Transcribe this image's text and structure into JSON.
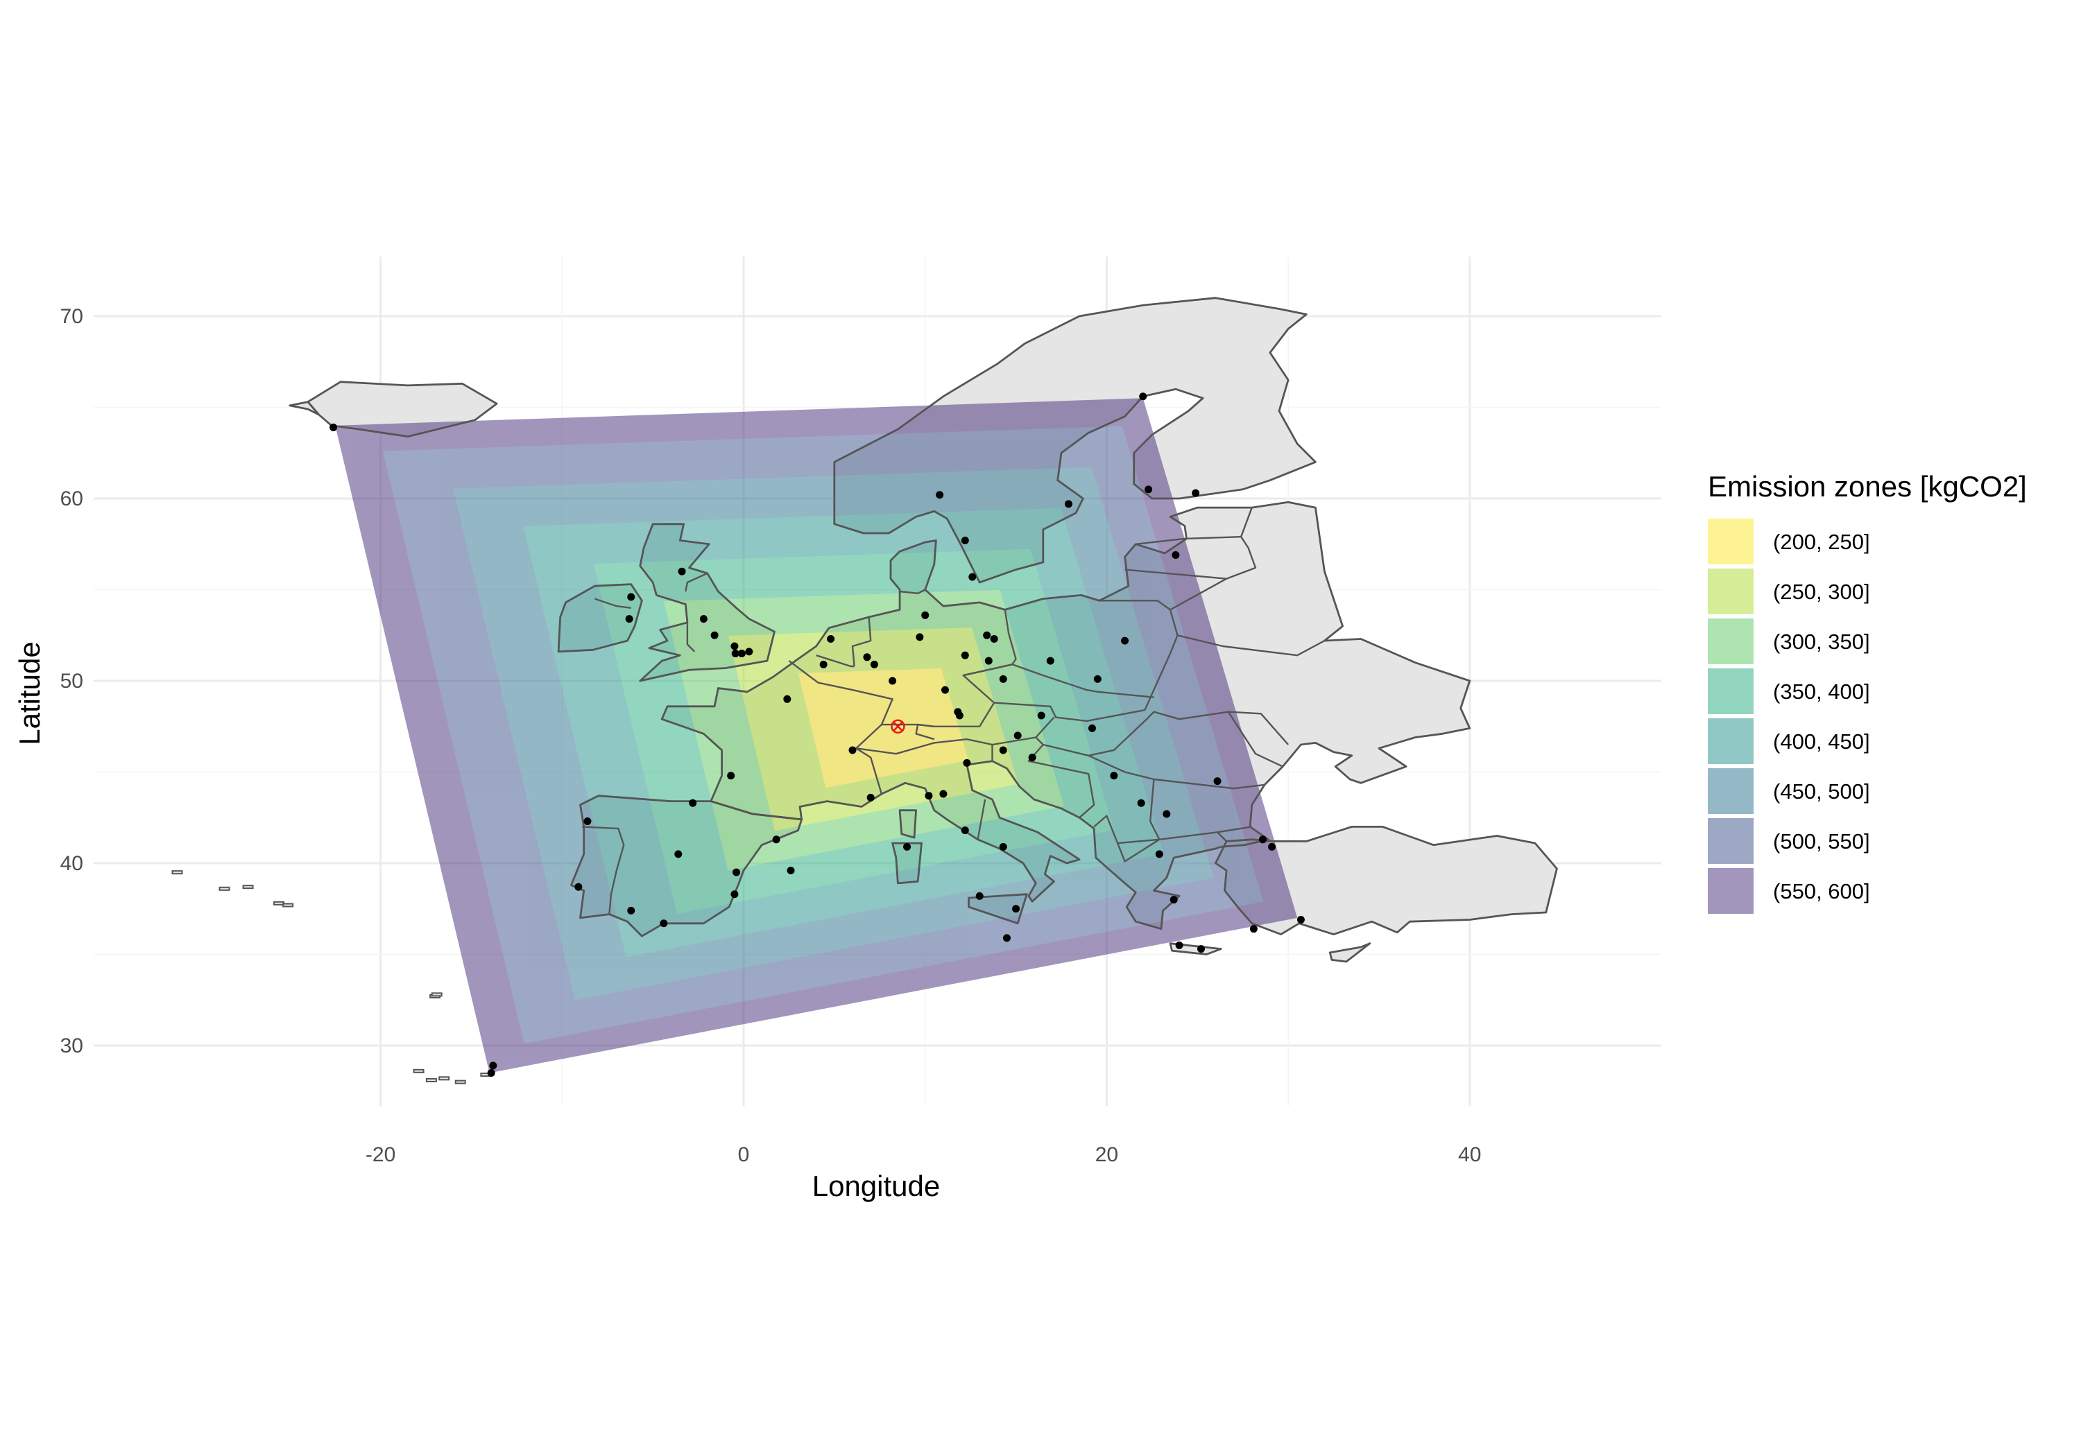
{
  "chart_data": {
    "type": "map",
    "xlabel": "Longitude",
    "ylabel": "Latitude",
    "xlim": [
      -30,
      50
    ],
    "ylim": [
      27,
      72
    ],
    "x_ticks": [
      -20,
      0,
      20,
      40
    ],
    "y_ticks": [
      30,
      40,
      50,
      60,
      70
    ],
    "grid": true,
    "legend": {
      "title": "Emission zones [kgCO2]",
      "placement": "right",
      "entries": [
        {
          "label": "(200, 250]",
          "color": "#fde725"
        },
        {
          "label": "(250, 300]",
          "color": "#addc30"
        },
        {
          "label": "(300, 350]",
          "color": "#5ec962"
        },
        {
          "label": "(350, 400]",
          "color": "#28ae80"
        },
        {
          "label": "(400, 450]",
          "color": "#21918c"
        },
        {
          "label": "(450, 500]",
          "color": "#2c728e"
        },
        {
          "label": "(500, 550]",
          "color": "#3b528b"
        },
        {
          "label": "(550, 600]",
          "color": "#472d7b"
        }
      ]
    },
    "zone_opacity": 0.5,
    "zone_corners": [
      [
        -22.5,
        64
      ],
      [
        22,
        65.5
      ],
      [
        30.5,
        37
      ],
      [
        -14,
        28.5
      ]
    ],
    "zone_center": [
      8.5,
      47.5
    ],
    "origin_marker": {
      "lon": 8.5,
      "lat": 47.5,
      "color": "#e41a1c"
    },
    "cities": [
      [
        -22.6,
        63.9
      ],
      [
        22.0,
        65.6
      ],
      [
        10.8,
        60.2
      ],
      [
        17.9,
        59.7
      ],
      [
        22.3,
        60.5
      ],
      [
        24.9,
        60.3
      ],
      [
        23.8,
        56.9
      ],
      [
        12.6,
        55.7
      ],
      [
        12.2,
        57.7
      ],
      [
        -3.4,
        56.0
      ],
      [
        -6.3,
        53.4
      ],
      [
        -2.2,
        53.4
      ],
      [
        -6.2,
        54.6
      ],
      [
        -1.6,
        52.5
      ],
      [
        -0.45,
        51.5
      ],
      [
        -0.1,
        51.5
      ],
      [
        0.3,
        51.6
      ],
      [
        -0.5,
        51.9
      ],
      [
        4.8,
        52.3
      ],
      [
        4.4,
        50.9
      ],
      [
        2.4,
        49.0
      ],
      [
        6.8,
        51.3
      ],
      [
        7.2,
        50.9
      ],
      [
        8.2,
        50.0
      ],
      [
        9.7,
        52.4
      ],
      [
        10.0,
        53.6
      ],
      [
        13.4,
        52.5
      ],
      [
        13.8,
        52.3
      ],
      [
        13.5,
        51.1
      ],
      [
        14.3,
        50.1
      ],
      [
        16.9,
        51.1
      ],
      [
        21.0,
        52.2
      ],
      [
        19.5,
        50.1
      ],
      [
        11.8,
        48.3
      ],
      [
        11.1,
        49.5
      ],
      [
        12.2,
        51.4
      ],
      [
        11.9,
        48.1
      ],
      [
        16.4,
        48.1
      ],
      [
        19.2,
        47.4
      ],
      [
        15.1,
        47.0
      ],
      [
        14.3,
        46.2
      ],
      [
        15.9,
        45.8
      ],
      [
        12.3,
        45.5
      ],
      [
        6.0,
        46.2
      ],
      [
        7.0,
        43.6
      ],
      [
        10.2,
        43.7
      ],
      [
        11.0,
        43.8
      ],
      [
        12.2,
        41.8
      ],
      [
        14.3,
        40.9
      ],
      [
        9.0,
        40.9
      ],
      [
        13.0,
        38.2
      ],
      [
        15.0,
        37.5
      ],
      [
        14.5,
        35.9
      ],
      [
        2.6,
        39.6
      ],
      [
        1.8,
        41.3
      ],
      [
        -0.4,
        39.5
      ],
      [
        -3.6,
        40.5
      ],
      [
        -0.5,
        38.3
      ],
      [
        -2.8,
        43.3
      ],
      [
        -0.7,
        44.8
      ],
      [
        -8.6,
        42.3
      ],
      [
        -9.1,
        38.7
      ],
      [
        -6.2,
        37.4
      ],
      [
        -4.4,
        36.7
      ],
      [
        20.4,
        44.8
      ],
      [
        21.9,
        43.3
      ],
      [
        23.3,
        42.7
      ],
      [
        26.1,
        44.5
      ],
      [
        28.6,
        41.3
      ],
      [
        29.1,
        40.9
      ],
      [
        22.9,
        40.5
      ],
      [
        23.7,
        38.0
      ],
      [
        28.1,
        36.4
      ],
      [
        25.2,
        35.3
      ],
      [
        24.0,
        35.5
      ],
      [
        30.7,
        36.9
      ],
      [
        -13.8,
        28.9
      ],
      [
        -13.9,
        28.5
      ]
    ]
  }
}
